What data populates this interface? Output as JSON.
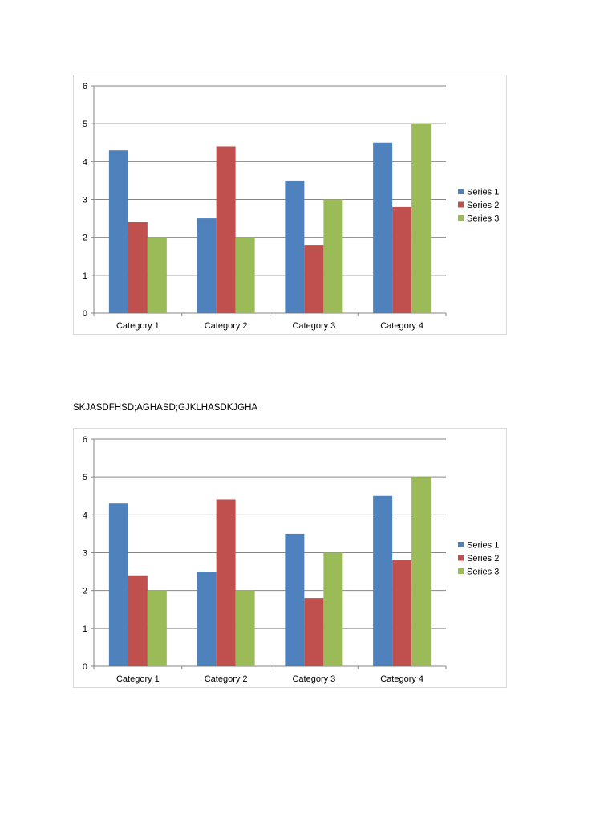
{
  "body_text": "SKJASDFHSD;AGHASD;GJKLHASDKJGHA",
  "chart_data": [
    {
      "type": "bar",
      "title": "",
      "xlabel": "",
      "ylabel": "",
      "ylim": [
        0,
        6
      ],
      "yticks": [
        "0",
        "1",
        "2",
        "3",
        "4",
        "5",
        "6"
      ],
      "grid": true,
      "legend_position": "right",
      "categories": [
        "Category 1",
        "Category 2",
        "Category 3",
        "Category 4"
      ],
      "series": [
        {
          "name": "Series 1",
          "color": "#4f81bd",
          "values": [
            4.3,
            2.5,
            3.5,
            4.5
          ]
        },
        {
          "name": "Series 2",
          "color": "#c0504d",
          "values": [
            2.4,
            4.4,
            1.8,
            2.8
          ]
        },
        {
          "name": "Series 3",
          "color": "#9bbb59",
          "values": [
            2,
            2,
            3,
            5
          ]
        }
      ]
    },
    {
      "type": "bar",
      "title": "",
      "xlabel": "",
      "ylabel": "",
      "ylim": [
        0,
        6
      ],
      "yticks": [
        "0",
        "1",
        "2",
        "3",
        "4",
        "5",
        "6"
      ],
      "grid": true,
      "legend_position": "right",
      "categories": [
        "Category 1",
        "Category 2",
        "Category 3",
        "Category 4"
      ],
      "series": [
        {
          "name": "Series 1",
          "color": "#4f81bd",
          "values": [
            4.3,
            2.5,
            3.5,
            4.5
          ]
        },
        {
          "name": "Series 2",
          "color": "#c0504d",
          "values": [
            2.4,
            4.4,
            1.8,
            2.8
          ]
        },
        {
          "name": "Series 3",
          "color": "#9bbb59",
          "values": [
            2,
            2,
            3,
            5
          ]
        }
      ]
    }
  ]
}
